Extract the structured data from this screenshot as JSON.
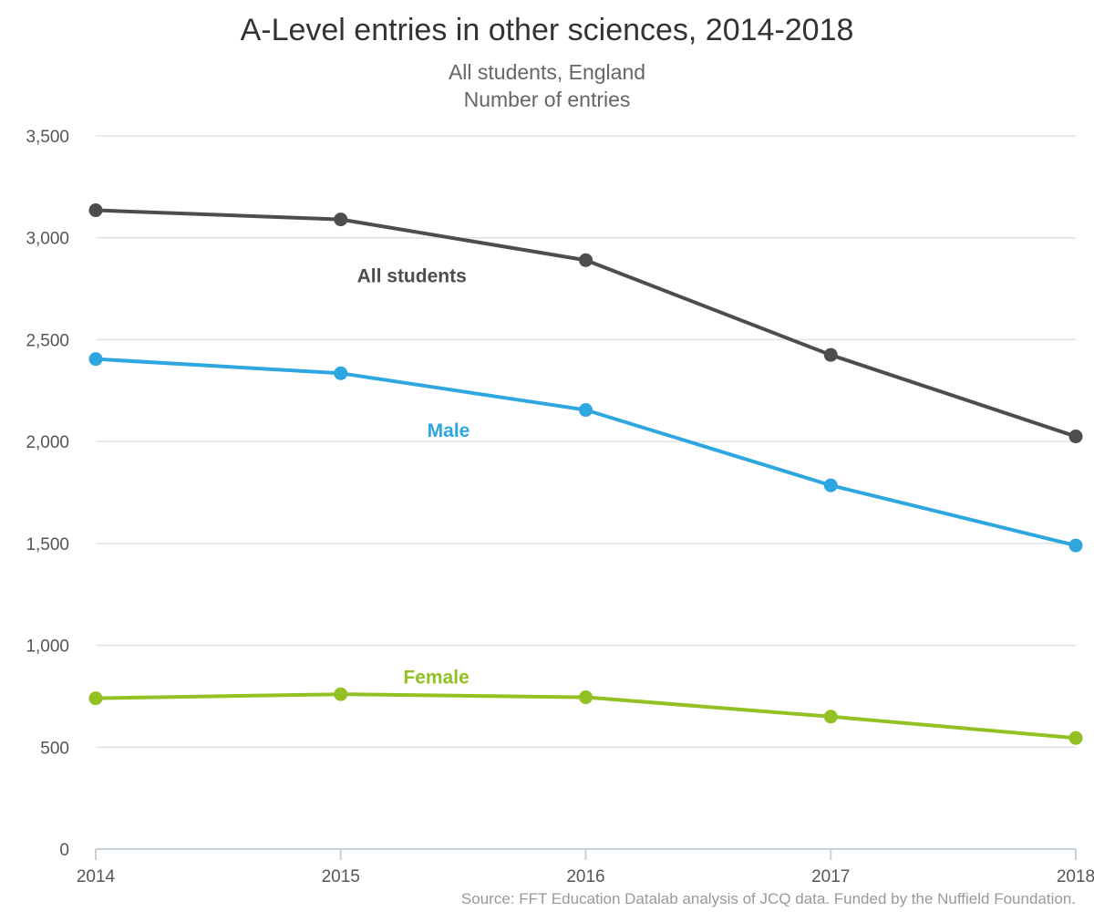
{
  "chart_data": {
    "type": "line",
    "title": "A-Level entries in other sciences, 2014-2018",
    "subtitle_lines": [
      "All students, England",
      "Number of entries"
    ],
    "source": "Source: FFT Education Datalab analysis of JCQ data. Funded by the Nuffield Foundation.",
    "x": [
      "2014",
      "2015",
      "2016",
      "2017",
      "2018"
    ],
    "ylim": [
      0,
      3500
    ],
    "yticks": [
      0,
      500,
      1000,
      1500,
      2000,
      2500,
      3000,
      3500
    ],
    "ytick_labels": [
      "0",
      "500",
      "1,000",
      "1,500",
      "2,000",
      "2,500",
      "3,000",
      "3,500"
    ],
    "grid": true,
    "legend": "inline labels",
    "series": [
      {
        "name": "All students",
        "color": "#4d4d4d",
        "values": [
          3135,
          3090,
          2890,
          2425,
          2025
        ]
      },
      {
        "name": "Male",
        "color": "#2ea7e0",
        "values": [
          2405,
          2335,
          2155,
          1785,
          1490
        ]
      },
      {
        "name": "Female",
        "color": "#93c022",
        "values": [
          740,
          760,
          745,
          650,
          545
        ]
      }
    ]
  }
}
